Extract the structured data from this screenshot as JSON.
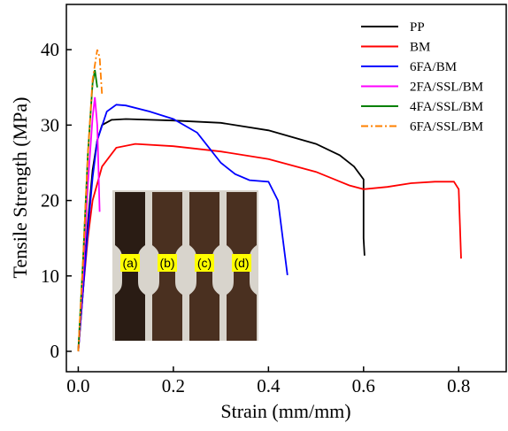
{
  "chart_data": {
    "type": "line",
    "x_label": "Strain (mm/mm)",
    "y_label": "Tensile Strength (MPa)",
    "xlim": [
      -0.025,
      0.9
    ],
    "ylim": [
      -2.7,
      46
    ],
    "xticks": [
      {
        "value": 0,
        "label": "0.0"
      },
      0.2,
      0.4,
      0.6,
      0.8
    ],
    "yticks": [
      0,
      10,
      20,
      30,
      40
    ],
    "legend": "upper right",
    "inset_labels": [
      "(a)",
      "(b)",
      "(c)",
      "(d)"
    ],
    "series": [
      {
        "name": "PP",
        "color": "#000000",
        "dash": "solid",
        "x": [
          0,
          0.01,
          0.02,
          0.03,
          0.04,
          0.05,
          0.07,
          0.1,
          0.2,
          0.3,
          0.4,
          0.5,
          0.55,
          0.58,
          0.6,
          0.6,
          0.602
        ],
        "values": [
          0,
          8,
          17,
          24,
          28,
          30,
          30.7,
          30.8,
          30.6,
          30.3,
          29.3,
          27.5,
          26,
          24.5,
          22.8,
          15,
          12.7
        ]
      },
      {
        "name": "BM",
        "color": "#ff0000",
        "dash": "solid",
        "x": [
          0,
          0.01,
          0.02,
          0.03,
          0.05,
          0.08,
          0.12,
          0.2,
          0.3,
          0.4,
          0.5,
          0.57,
          0.6,
          0.65,
          0.7,
          0.75,
          0.79,
          0.8,
          0.805
        ],
        "values": [
          0,
          8,
          15,
          20,
          24.5,
          27,
          27.5,
          27.2,
          26.5,
          25.5,
          23.8,
          22,
          21.5,
          21.8,
          22.3,
          22.5,
          22.5,
          21.5,
          12.3
        ]
      },
      {
        "name": "6FA/BM",
        "color": "#0000ff",
        "dash": "solid",
        "x": [
          0,
          0.01,
          0.02,
          0.03,
          0.04,
          0.06,
          0.08,
          0.1,
          0.15,
          0.2,
          0.25,
          0.3,
          0.33,
          0.36,
          0.4,
          0.42,
          0.43,
          0.44
        ],
        "values": [
          0,
          8,
          16,
          23,
          28,
          31.8,
          32.7,
          32.6,
          31.8,
          30.8,
          29,
          25,
          23.5,
          22.7,
          22.5,
          20,
          15,
          10.1
        ]
      },
      {
        "name": "2FA/SSL/BM",
        "color": "#ff00ff",
        "dash": "solid",
        "x": [
          0,
          0.01,
          0.02,
          0.03,
          0.035,
          0.04,
          0.045
        ],
        "values": [
          0,
          10,
          22,
          31,
          33.7,
          30,
          18.5
        ]
      },
      {
        "name": "4FA/SSL/BM",
        "color": "#008000",
        "dash": "solid",
        "x": [
          0,
          0.01,
          0.02,
          0.03,
          0.035,
          0.04
        ],
        "values": [
          0,
          12,
          26,
          35.5,
          37.3,
          35
        ]
      },
      {
        "name": "6FA/SSL/BM",
        "color": "#ff8000",
        "dash": "dashdot",
        "x": [
          0,
          0.01,
          0.02,
          0.03,
          0.04,
          0.045,
          0.05
        ],
        "values": [
          0,
          12,
          26,
          36,
          40,
          39,
          34
        ]
      }
    ]
  }
}
